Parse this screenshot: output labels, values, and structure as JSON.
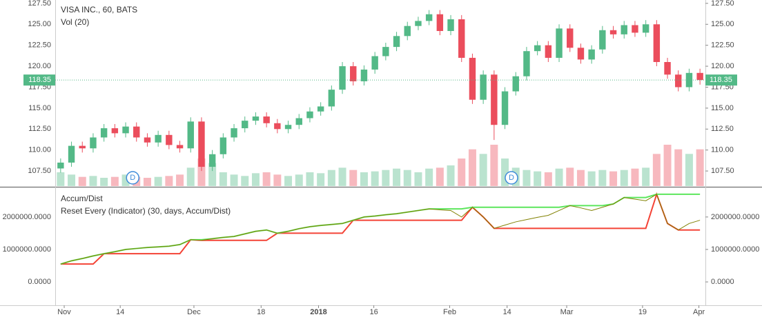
{
  "chart_data": {
    "type": "candlestick",
    "title": "VISA INC., 60, BATS",
    "volume_label": "Vol (20)",
    "xlim": [
      -0.5,
      59.5
    ],
    "xticks": [
      {
        "value": 0.33,
        "label": "Nov"
      },
      {
        "value": 5.5,
        "label": "14"
      },
      {
        "value": 12.3,
        "label": "Dec"
      },
      {
        "value": 18.5,
        "label": "18"
      },
      {
        "value": 23.8,
        "label": "2018"
      },
      {
        "value": 28.9,
        "label": "16"
      },
      {
        "value": 35.9,
        "label": "Feb"
      },
      {
        "value": 41.2,
        "label": "14"
      },
      {
        "value": 46.7,
        "label": "Mar"
      },
      {
        "value": 53.7,
        "label": "19"
      },
      {
        "value": 58.9,
        "label": "Apr"
      }
    ],
    "ylim": [
      105.7,
      127.9
    ],
    "yticks": [
      {
        "value": 107.5,
        "label": "107.50"
      },
      {
        "value": 110,
        "label": "110.00"
      },
      {
        "value": 112.5,
        "label": "112.50"
      },
      {
        "value": 115,
        "label": "115.00"
      },
      {
        "value": 117.5,
        "label": "117.50"
      },
      {
        "value": 120,
        "label": "120.00"
      },
      {
        "value": 122.5,
        "label": "122.50"
      },
      {
        "value": 125,
        "label": "125.00"
      },
      {
        "value": 127.5,
        "label": "127.50"
      }
    ],
    "last_price": 118.35,
    "up_color": "#53b987",
    "down_color": "#eb4d5c",
    "open": [
      107.8,
      108.5,
      110.5,
      110.2,
      111.5,
      112.6,
      112.0,
      112.8,
      111.5,
      110.9,
      111.8,
      110.6,
      110.2,
      113.4,
      108.0,
      109.5,
      111.5,
      112.6,
      113.5,
      114.0,
      113.2,
      112.5,
      113.0,
      113.8,
      114.6,
      115.2,
      117.2,
      120.0,
      118.2,
      119.6,
      121.2,
      122.3,
      123.6,
      124.8,
      125.4,
      126.2,
      124.2,
      125.6,
      121.0,
      116.0,
      119.0,
      113.0,
      117.0,
      118.8,
      121.8,
      122.5,
      121.0,
      124.5,
      122.2,
      120.8,
      122.0,
      124.3,
      123.8,
      124.9,
      124.0,
      125.0,
      120.5,
      119.0,
      117.5,
      119.2
    ],
    "high": [
      109.0,
      111.0,
      111.0,
      112.0,
      113.1,
      113.1,
      113.3,
      113.3,
      112.0,
      112.3,
      112.3,
      111.1,
      113.9,
      113.9,
      110.0,
      112.0,
      113.1,
      114.0,
      114.5,
      114.5,
      113.7,
      113.5,
      114.3,
      115.1,
      115.7,
      117.7,
      120.5,
      120.5,
      120.1,
      121.7,
      122.8,
      124.1,
      125.3,
      125.9,
      126.7,
      126.7,
      126.1,
      126.1,
      121.5,
      119.5,
      119.5,
      117.5,
      119.3,
      122.3,
      123.0,
      123.0,
      125.0,
      125.0,
      122.7,
      122.5,
      124.8,
      124.8,
      125.4,
      125.4,
      125.5,
      125.5,
      121.0,
      119.5,
      119.7,
      119.7
    ],
    "low": [
      107.3,
      108.0,
      109.7,
      109.7,
      111.0,
      111.5,
      111.5,
      111.0,
      110.4,
      110.4,
      110.1,
      109.7,
      109.7,
      107.5,
      107.5,
      109.0,
      111.0,
      112.1,
      113.0,
      112.7,
      112.0,
      112.0,
      112.5,
      113.3,
      114.1,
      114.7,
      116.7,
      117.7,
      117.7,
      119.1,
      120.7,
      121.8,
      123.1,
      124.3,
      124.9,
      123.7,
      123.7,
      120.5,
      115.5,
      115.5,
      111.2,
      112.5,
      116.5,
      118.3,
      121.3,
      120.5,
      120.5,
      121.7,
      120.3,
      120.3,
      121.5,
      123.3,
      123.3,
      123.5,
      123.5,
      120.0,
      118.5,
      117.0,
      117.0,
      117.8
    ],
    "close": [
      108.5,
      110.5,
      110.2,
      111.5,
      112.6,
      112.0,
      112.8,
      111.5,
      110.9,
      111.8,
      110.6,
      110.2,
      113.4,
      108.0,
      109.5,
      111.5,
      112.6,
      113.5,
      114.0,
      113.2,
      112.5,
      113.0,
      113.8,
      114.6,
      115.2,
      117.2,
      120.0,
      118.2,
      119.6,
      121.2,
      122.3,
      123.6,
      124.8,
      125.4,
      126.2,
      124.2,
      125.6,
      121.0,
      116.0,
      119.0,
      113.0,
      117.0,
      118.8,
      121.8,
      122.5,
      121.0,
      124.5,
      122.2,
      120.8,
      122.0,
      124.3,
      123.8,
      124.9,
      124.0,
      125.0,
      120.5,
      119.0,
      117.5,
      119.2,
      118.35
    ],
    "volume": [
      3,
      2.5,
      2,
      2.2,
      1.8,
      2,
      2.5,
      2,
      1.8,
      2,
      2.2,
      2.5,
      4,
      6,
      5,
      3,
      2.5,
      2.2,
      2.8,
      3,
      2.5,
      2.2,
      2.5,
      3,
      2.8,
      3.5,
      4,
      3.5,
      3,
      3.2,
      3.5,
      3.8,
      3.5,
      3,
      3.8,
      4,
      4.5,
      6,
      8,
      7,
      9,
      6,
      4,
      3.5,
      3.2,
      3,
      3.8,
      4,
      3.5,
      3.2,
      3.5,
      3.2,
      3.5,
      3.8,
      4,
      7,
      9,
      8,
      7,
      8
    ],
    "y2lim": [
      0,
      12
    ],
    "events": [
      {
        "x": 6.65,
        "label": "D"
      },
      {
        "x": 41.6,
        "label": "D"
      }
    ],
    "indicator": {
      "type": "line",
      "title": "Accum/Dist",
      "subtitle": "Reset Every (Indicator) (30, days, Accum/Dist)",
      "ylim": [
        -720000,
        2910000
      ],
      "yticks": [
        {
          "value": 0,
          "label": "0.0000"
        },
        {
          "value": 1000000,
          "label": "1000000.0000"
        },
        {
          "value": 2000000,
          "label": "2000000.0000"
        }
      ],
      "series": [
        {
          "color": "#f44336",
          "values": [
            550000,
            550000,
            550000,
            550000,
            870000,
            870000,
            870000,
            870000,
            870000,
            870000,
            870000,
            870000,
            1300000,
            1280000,
            1280000,
            1280000,
            1280000,
            1280000,
            1280000,
            1280000,
            1500000,
            1500000,
            1500000,
            1500000,
            1500000,
            1500000,
            1500000,
            1900000,
            1900000,
            1900000,
            1900000,
            1900000,
            1900000,
            1900000,
            1900000,
            1900000,
            1900000,
            1900000,
            2300000,
            2000000,
            1650000,
            1650000,
            1650000,
            1650000,
            1650000,
            1650000,
            1650000,
            1650000,
            1650000,
            1650000,
            1650000,
            1650000,
            1650000,
            1650000,
            1650000,
            2700000,
            1800000,
            1600000,
            1600000,
            1600000
          ]
        },
        {
          "color": "#5ce65c",
          "values": [
            550000,
            650000,
            720000,
            800000,
            870000,
            930000,
            1000000,
            1030000,
            1060000,
            1080000,
            1100000,
            1150000,
            1300000,
            1300000,
            1330000,
            1370000,
            1400000,
            1480000,
            1560000,
            1600000,
            1500000,
            1560000,
            1640000,
            1700000,
            1740000,
            1770000,
            1800000,
            1900000,
            2000000,
            2030000,
            2070000,
            2100000,
            2150000,
            2200000,
            2250000,
            2250000,
            2250000,
            2250000,
            2300000,
            2300000,
            2300000,
            2300000,
            2300000,
            2300000,
            2300000,
            2300000,
            2300000,
            2350000,
            2350000,
            2350000,
            2350000,
            2400000,
            2600000,
            2600000,
            2600000,
            2700000,
            2700000,
            2700000,
            2700000,
            2700000
          ]
        },
        {
          "name": "Accum/Dist",
          "color": "#808000",
          "values": [
            550000,
            650000,
            720000,
            800000,
            870000,
            930000,
            1000000,
            1030000,
            1060000,
            1080000,
            1100000,
            1150000,
            1300000,
            1280000,
            1330000,
            1370000,
            1400000,
            1480000,
            1560000,
            1600000,
            1500000,
            1560000,
            1640000,
            1700000,
            1740000,
            1770000,
            1800000,
            1900000,
            2000000,
            2030000,
            2070000,
            2100000,
            2150000,
            2200000,
            2250000,
            2220000,
            2200000,
            2000000,
            2300000,
            2000000,
            1650000,
            1750000,
            1850000,
            1920000,
            1990000,
            2050000,
            2200000,
            2350000,
            2280000,
            2200000,
            2300000,
            2400000,
            2600000,
            2550000,
            2500000,
            2700000,
            1800000,
            1600000,
            1800000,
            1900000
          ]
        }
      ]
    }
  }
}
